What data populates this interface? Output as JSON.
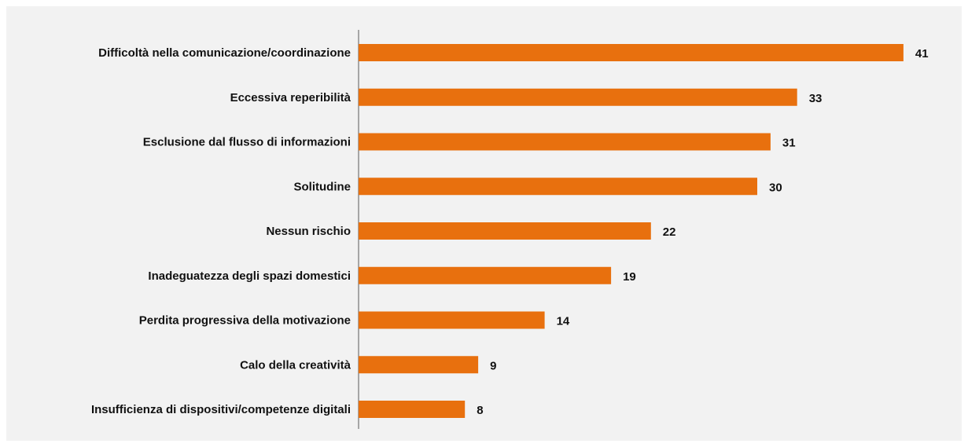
{
  "colors": {
    "bar": "#e8700e",
    "axis": "#8c8c8c",
    "panel": "#f2f2f2"
  },
  "chart_data": {
    "type": "bar",
    "orientation": "horizontal",
    "title": "",
    "xlabel": "",
    "ylabel": "",
    "grid": false,
    "legend": "none",
    "xlim": [
      0,
      45
    ],
    "categories": [
      "Difficoltà nella comunicazione/coordinazione",
      "Eccessiva reperibilità",
      "Esclusione dal flusso di informazioni",
      "Solitudine",
      "Nessun rischio",
      "Inadeguatezza degli spazi domestici",
      "Perdita progressiva della motivazione",
      "Calo della creatività",
      "Insufficienza di dispositivi/competenze digitali"
    ],
    "values": [
      41,
      33,
      31,
      30,
      22,
      19,
      14,
      9,
      8
    ]
  }
}
